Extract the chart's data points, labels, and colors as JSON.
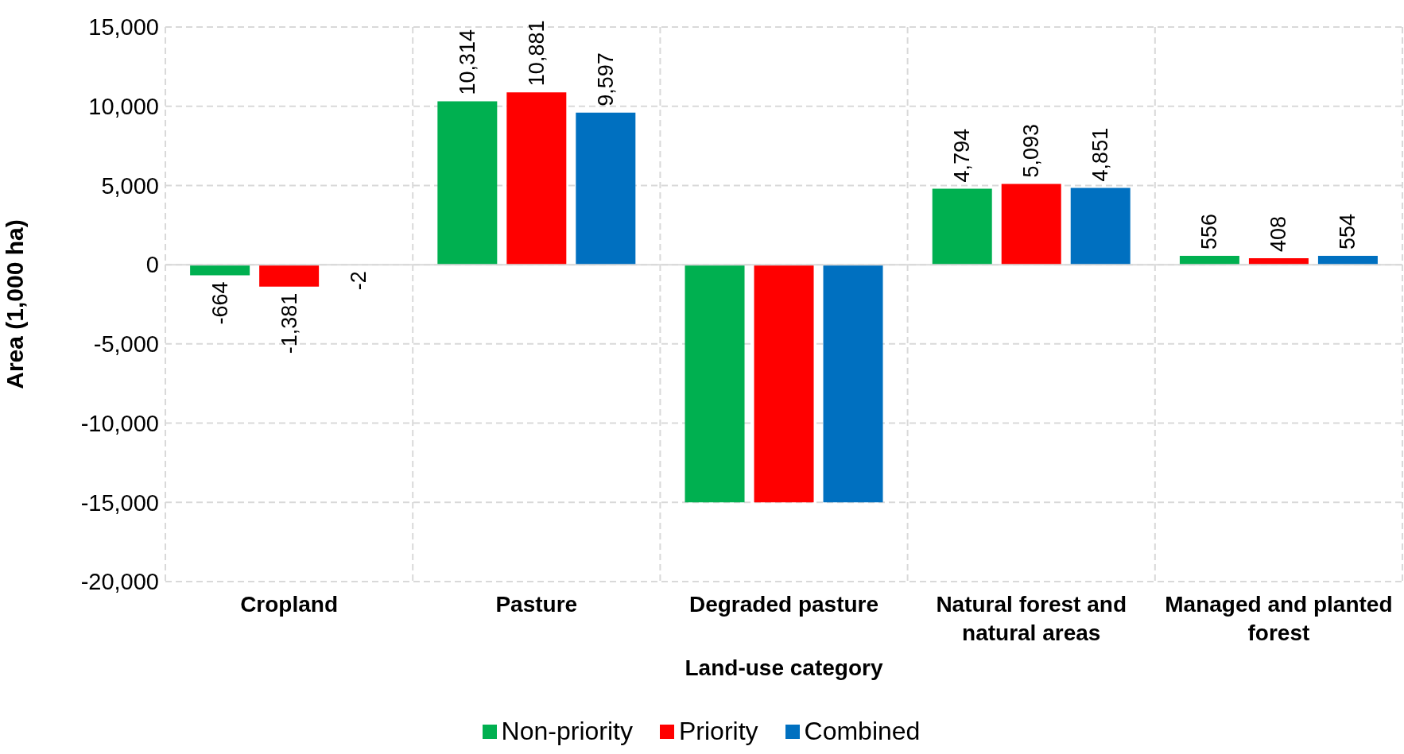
{
  "chart_data": {
    "type": "bar",
    "xlabel": "Land-use category",
    "ylabel": "Area (1,000 ha)",
    "categories": [
      "Cropland",
      "Pasture",
      "Degraded pasture",
      "Natural  forest and natural areas",
      "Managed and planted forest"
    ],
    "series": [
      {
        "name": "Non-priority",
        "color": "#00b050",
        "values": [
          -664,
          10314,
          -15000,
          4794,
          556
        ],
        "value_labels": [
          "-664",
          "10,314",
          null,
          "4,794",
          "556"
        ]
      },
      {
        "name": "Priority",
        "color": "#ff0000",
        "values": [
          -1381,
          10881,
          -15000,
          5093,
          408
        ],
        "value_labels": [
          "-1,381",
          "10,881",
          null,
          "5,093",
          "408"
        ]
      },
      {
        "name": "Combined",
        "color": "#0070c0",
        "values": [
          -2,
          9597,
          -15000,
          4851,
          554
        ],
        "value_labels": [
          "-2",
          "9,597",
          null,
          "4,851",
          "554"
        ]
      }
    ],
    "ylim": [
      -20000,
      15000
    ],
    "yticks": [
      {
        "value": -20000,
        "label": "-20,000"
      },
      {
        "value": -15000,
        "label": "-15,000"
      },
      {
        "value": -10000,
        "label": "-10,000"
      },
      {
        "value": -5000,
        "label": "-5,000"
      },
      0,
      {
        "value": 5000,
        "label": "5,000"
      },
      {
        "value": 10000,
        "label": "10,000"
      },
      {
        "value": 15000,
        "label": "15,000"
      }
    ],
    "grid": true,
    "legend": "bottom"
  }
}
